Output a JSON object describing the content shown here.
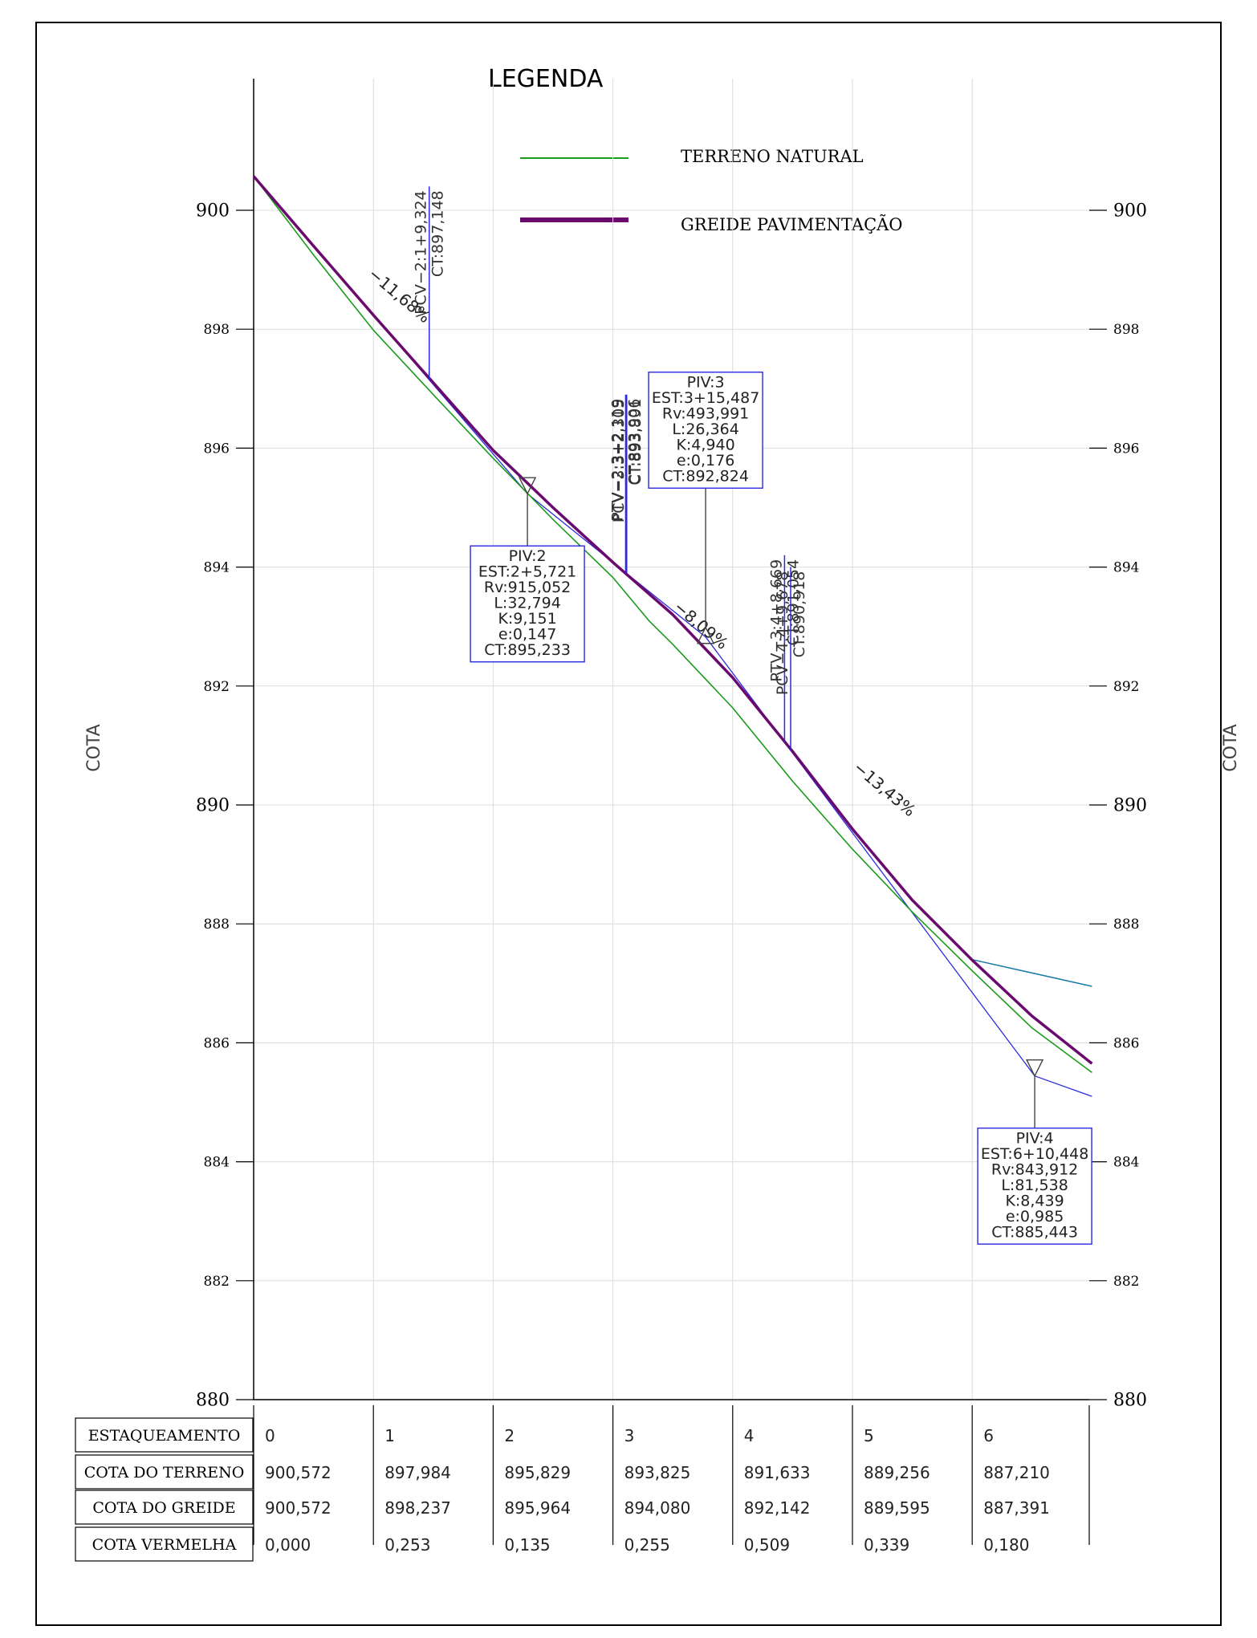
{
  "chart_data": {
    "type": "line",
    "title": "",
    "ylabel": "COTA",
    "ylabel_right": "COTA",
    "xlim": [
      0,
      7
    ],
    "ylim": [
      880,
      905
    ],
    "y_ticks": [
      {
        "value": 900,
        "label": "900",
        "major": true
      },
      {
        "value": 898,
        "label": "898",
        "major": false
      },
      {
        "value": 896,
        "label": "896",
        "major": false
      },
      {
        "value": 894,
        "label": "894",
        "major": false
      },
      {
        "value": 892,
        "label": "892",
        "major": false
      },
      {
        "value": 890,
        "label": "890",
        "major": true
      },
      {
        "value": 888,
        "label": "888",
        "major": false
      },
      {
        "value": 886,
        "label": "886",
        "major": false
      },
      {
        "value": 884,
        "label": "884",
        "major": false
      },
      {
        "value": 882,
        "label": "882",
        "major": false
      },
      {
        "value": 880,
        "label": "880",
        "major": true
      }
    ],
    "x_stations": [
      0,
      1,
      2,
      3,
      4,
      5,
      6
    ],
    "grid": true,
    "legend": {
      "title": "LEGENDA",
      "position": "top",
      "entries": [
        {
          "label": "TERRENO NATURAL",
          "color": "#1a9c1a"
        },
        {
          "label": "GREIDE PAVIMENTAÇÃO",
          "color": "#6a0a6e"
        }
      ]
    },
    "series": [
      {
        "name": "TERRENO NATURAL",
        "color": "#1a9c1a",
        "points": [
          [
            0,
            900.572
          ],
          [
            0.5,
            899.25
          ],
          [
            1,
            897.984
          ],
          [
            1.5,
            896.9
          ],
          [
            2,
            895.829
          ],
          [
            2.5,
            894.8
          ],
          [
            3,
            893.825
          ],
          [
            3.3,
            893.1
          ],
          [
            3.5,
            892.7
          ],
          [
            4,
            891.633
          ],
          [
            4.5,
            890.4
          ],
          [
            5,
            889.256
          ],
          [
            5.5,
            888.2
          ],
          [
            6,
            887.21
          ],
          [
            6.5,
            886.25
          ],
          [
            7,
            885.5
          ]
        ]
      },
      {
        "name": "GREIDE PAVIMENTAÇÃO",
        "color": "#6a0a6e",
        "points": [
          [
            0,
            900.572
          ],
          [
            0.5,
            899.4
          ],
          [
            1,
            898.237
          ],
          [
            1.5,
            897.1
          ],
          [
            2,
            895.964
          ],
          [
            2.5,
            895.0
          ],
          [
            3,
            894.08
          ],
          [
            3.5,
            893.2
          ],
          [
            4,
            892.142
          ],
          [
            4.5,
            890.9
          ],
          [
            5,
            889.595
          ],
          [
            5.5,
            888.4
          ],
          [
            6,
            887.391
          ],
          [
            6.5,
            886.45
          ],
          [
            7,
            885.65
          ]
        ]
      },
      {
        "name": "",
        "color": "#2a2ae0",
        "points": [
          [
            0,
            900.572
          ],
          [
            2.286,
            895.233
          ],
          [
            3.774,
            892.824
          ],
          [
            6.522,
            885.443
          ],
          [
            7,
            885.1
          ]
        ]
      },
      {
        "name": "",
        "color": "#1a7aa8",
        "points": [
          [
            6,
            887.4
          ],
          [
            7,
            886.95
          ]
        ]
      }
    ],
    "grade_labels": [
      {
        "text": "−11,68%",
        "x": 0.95,
        "y": 898.9
      },
      {
        "text": "−8,09%",
        "x": 3.5,
        "y": 893.3
      },
      {
        "text": "−13,43%",
        "x": 5.0,
        "y": 890.6
      }
    ],
    "vertical_markers": [
      {
        "x": 1.466,
        "y0": 897.148,
        "y1": 900.4,
        "lines": [
          "PCV−2:1+9,324",
          "CT:897,148"
        ]
      },
      {
        "x": 3.106,
        "y0": 893.906,
        "y1": 896.9,
        "lines": [
          "PTV−2:3+2,119",
          "CT:893,906"
        ]
      },
      {
        "x": 3.115,
        "y0": 893.891,
        "y1": 896.9,
        "lines": [
          "PCV−3:3+2,305",
          "CT:893,891"
        ]
      },
      {
        "x": 4.433,
        "y0": 891.054,
        "y1": 894.2,
        "lines": [
          "PTV−3:4+8,669",
          "CT:891,054"
        ]
      },
      {
        "x": 4.484,
        "y0": 890.918,
        "y1": 894.0,
        "lines": [
          "PCV−4:4+9,678",
          "CT:890,918"
        ]
      }
    ],
    "piv_boxes": [
      {
        "x": 2.286,
        "y": 895.233,
        "pointer": "down",
        "lines": [
          "PIV:2",
          "EST:2+5,721",
          "Rv:915,052",
          "L:32,794",
          "K:9,151",
          "e:0,147",
          "CT:895,233"
        ]
      },
      {
        "x": 3.774,
        "y": 892.824,
        "pointer": "up",
        "lines": [
          "PIV:3",
          "EST:3+15,487",
          "Rv:493,991",
          "L:26,364",
          "K:4,940",
          "e:0,176",
          "CT:892,824"
        ]
      },
      {
        "x": 6.522,
        "y": 885.443,
        "pointer": "down",
        "lines": [
          "PIV:4",
          "EST:6+10,448",
          "Rv:843,912",
          "L:81,538",
          "K:8,439",
          "e:0,985",
          "CT:885,443"
        ]
      }
    ]
  },
  "table": {
    "rows": [
      {
        "label": "ESTAQUEAMENTO",
        "values": [
          "0",
          "1",
          "2",
          "3",
          "4",
          "5",
          "6"
        ]
      },
      {
        "label": "COTA DO TERRENO",
        "values": [
          "900,572",
          "897,984",
          "895,829",
          "893,825",
          "891,633",
          "889,256",
          "887,210"
        ]
      },
      {
        "label": "COTA DO GREIDE",
        "values": [
          "900,572",
          "898,237",
          "895,964",
          "894,080",
          "892,142",
          "889,595",
          "887,391"
        ]
      },
      {
        "label": "COTA VERMELHA",
        "values": [
          "0,000",
          "0,253",
          "0,135",
          "0,255",
          "0,509",
          "0,339",
          "0,180"
        ]
      }
    ]
  }
}
